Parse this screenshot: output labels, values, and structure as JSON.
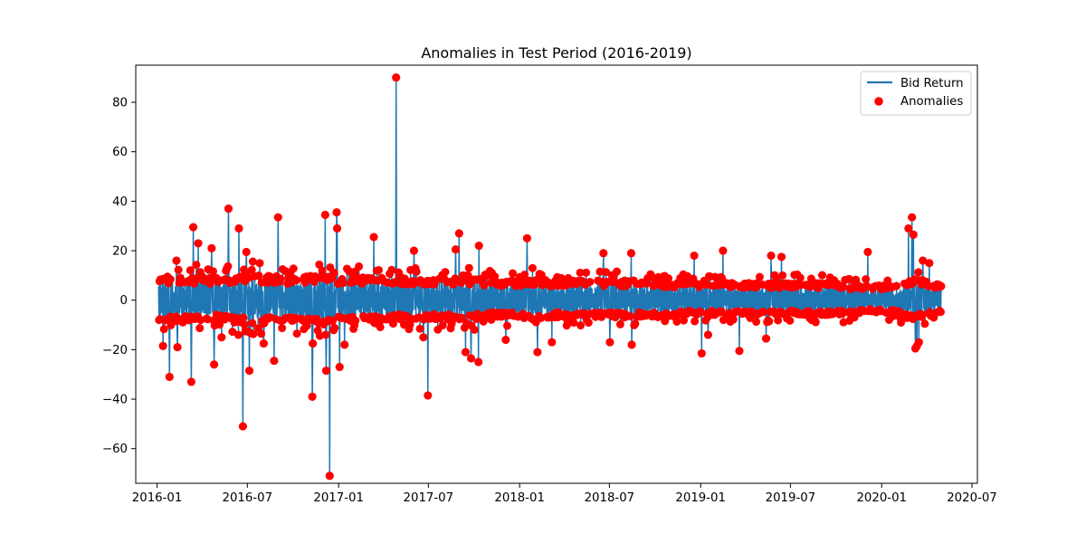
{
  "chart_data": {
    "type": "line",
    "title": "Anomalies in Test Period (2016-2019)",
    "xlabel": "",
    "ylabel": "",
    "xlim": [
      "2015-11-19",
      "2020-07-12"
    ],
    "ylim": [
      -74,
      95
    ],
    "grid": false,
    "legend_position": "top-right",
    "x_ticks": [
      "2016-01",
      "2016-07",
      "2017-01",
      "2017-07",
      "2018-01",
      "2018-07",
      "2019-01",
      "2019-07",
      "2020-01",
      "2020-07"
    ],
    "y_ticks": [
      -60,
      -40,
      -20,
      0,
      20,
      40,
      60,
      80
    ],
    "series": [
      {
        "name": "Bid Return",
        "kind": "line",
        "color": "#1f77b4",
        "envelope": {
          "x": [
            "2016-01-04",
            "2016-02-01",
            "2016-03-01",
            "2016-04-01",
            "2016-05-02",
            "2016-06-01",
            "2016-07-01",
            "2016-08-01",
            "2016-09-01",
            "2016-10-03",
            "2016-11-01",
            "2016-12-01",
            "2017-01-02",
            "2017-02-01",
            "2017-03-01",
            "2017-04-03",
            "2017-05-01",
            "2017-06-01",
            "2017-07-03",
            "2017-08-01",
            "2017-09-01",
            "2017-10-02",
            "2017-11-01",
            "2017-12-01",
            "2018-01-02",
            "2018-02-01",
            "2018-03-01",
            "2018-04-02",
            "2018-05-01",
            "2018-06-01",
            "2018-07-02",
            "2018-08-01",
            "2018-09-03",
            "2018-10-01",
            "2018-11-01",
            "2018-12-03",
            "2019-01-02",
            "2019-02-01",
            "2019-03-01",
            "2019-04-01",
            "2019-05-01",
            "2019-06-03",
            "2019-07-01",
            "2019-08-01",
            "2019-09-02",
            "2019-10-01",
            "2019-11-01",
            "2019-12-02",
            "2020-01-02",
            "2020-02-03",
            "2020-03-02",
            "2020-04-01",
            "2020-04-30"
          ],
          "upper": [
            9,
            10,
            9,
            10,
            9,
            10,
            11,
            10,
            10,
            9,
            10,
            10,
            9,
            9,
            10,
            9,
            9,
            9,
            9,
            9,
            9,
            9,
            8,
            8,
            8,
            9,
            8,
            8,
            8,
            8,
            8,
            8,
            8,
            7,
            7,
            7,
            7,
            7,
            7,
            7,
            7,
            7,
            7,
            7,
            7,
            7,
            6,
            6,
            6,
            6,
            9,
            8,
            6
          ],
          "lower": [
            -8,
            -9,
            -9,
            -9,
            -8,
            -9,
            -10,
            -10,
            -9,
            -9,
            -9,
            -10,
            -9,
            -9,
            -8,
            -8,
            -8,
            -8,
            -8,
            -8,
            -8,
            -8,
            -7,
            -7,
            -7,
            -8,
            -7,
            -7,
            -7,
            -7,
            -7,
            -7,
            -7,
            -7,
            -7,
            -6,
            -6,
            -6,
            -6,
            -6,
            -6,
            -6,
            -6,
            -6,
            -6,
            -6,
            -6,
            -5,
            -5,
            -6,
            -8,
            -7,
            -5
          ]
        },
        "spikes": [
          {
            "x": "2016-01-13",
            "y": -18.5
          },
          {
            "x": "2016-01-26",
            "y": -31
          },
          {
            "x": "2016-02-09",
            "y": 16
          },
          {
            "x": "2016-02-11",
            "y": -19
          },
          {
            "x": "2016-03-10",
            "y": -33
          },
          {
            "x": "2016-03-14",
            "y": 29.5
          },
          {
            "x": "2016-03-24",
            "y": 23
          },
          {
            "x": "2016-04-20",
            "y": 21
          },
          {
            "x": "2016-04-25",
            "y": -26
          },
          {
            "x": "2016-05-10",
            "y": -15
          },
          {
            "x": "2016-05-24",
            "y": 37
          },
          {
            "x": "2016-06-14",
            "y": 29
          },
          {
            "x": "2016-06-22",
            "y": -51
          },
          {
            "x": "2016-06-29",
            "y": 19.5
          },
          {
            "x": "2016-07-05",
            "y": -28.5
          },
          {
            "x": "2016-08-03",
            "y": -17.5
          },
          {
            "x": "2016-08-24",
            "y": -24.5
          },
          {
            "x": "2016-09-01",
            "y": 33.5
          },
          {
            "x": "2016-11-09",
            "y": -39
          },
          {
            "x": "2016-11-10",
            "y": -17.5
          },
          {
            "x": "2016-12-05",
            "y": 34.5
          },
          {
            "x": "2016-12-07",
            "y": -28.5
          },
          {
            "x": "2016-12-14",
            "y": -71
          },
          {
            "x": "2016-12-28",
            "y": 35.5
          },
          {
            "x": "2016-12-29",
            "y": 29
          },
          {
            "x": "2017-01-03",
            "y": -27
          },
          {
            "x": "2017-01-13",
            "y": -18
          },
          {
            "x": "2017-03-13",
            "y": 25.5
          },
          {
            "x": "2017-04-27",
            "y": 90
          },
          {
            "x": "2017-06-02",
            "y": 20
          },
          {
            "x": "2017-06-21",
            "y": -15
          },
          {
            "x": "2017-06-30",
            "y": -38.5
          },
          {
            "x": "2017-08-25",
            "y": 20.5
          },
          {
            "x": "2017-09-01",
            "y": 27
          },
          {
            "x": "2017-09-14",
            "y": -21
          },
          {
            "x": "2017-09-25",
            "y": -23.5
          },
          {
            "x": "2017-10-10",
            "y": -25
          },
          {
            "x": "2017-10-11",
            "y": 22
          },
          {
            "x": "2017-12-04",
            "y": -16
          },
          {
            "x": "2018-01-16",
            "y": 25
          },
          {
            "x": "2018-02-06",
            "y": -21
          },
          {
            "x": "2018-03-07",
            "y": -17
          },
          {
            "x": "2018-06-19",
            "y": 19
          },
          {
            "x": "2018-07-02",
            "y": -17
          },
          {
            "x": "2018-08-14",
            "y": 19
          },
          {
            "x": "2018-08-15",
            "y": -18
          },
          {
            "x": "2018-12-19",
            "y": 18
          },
          {
            "x": "2019-01-03",
            "y": -21.5
          },
          {
            "x": "2019-01-16",
            "y": -14
          },
          {
            "x": "2019-02-15",
            "y": 20
          },
          {
            "x": "2019-03-20",
            "y": -20.5
          },
          {
            "x": "2019-05-13",
            "y": -15.5
          },
          {
            "x": "2019-05-23",
            "y": 18
          },
          {
            "x": "2019-06-13",
            "y": 17.5
          },
          {
            "x": "2019-12-04",
            "y": 19.5
          },
          {
            "x": "2020-02-24",
            "y": 29
          },
          {
            "x": "2020-03-02",
            "y": 33.5
          },
          {
            "x": "2020-03-05",
            "y": 26.5
          },
          {
            "x": "2020-03-09",
            "y": -19.5
          },
          {
            "x": "2020-03-12",
            "y": -18.5
          },
          {
            "x": "2020-03-16",
            "y": -17
          },
          {
            "x": "2020-03-24",
            "y": 16
          },
          {
            "x": "2020-04-06",
            "y": 15
          }
        ]
      },
      {
        "name": "Anomalies",
        "kind": "scatter",
        "color": "#ff0000",
        "marker": "circle",
        "rule": "Anomalies form a near-continuous band at the Bid Return envelope's upper and lower edges and on every spike tip"
      }
    ]
  }
}
